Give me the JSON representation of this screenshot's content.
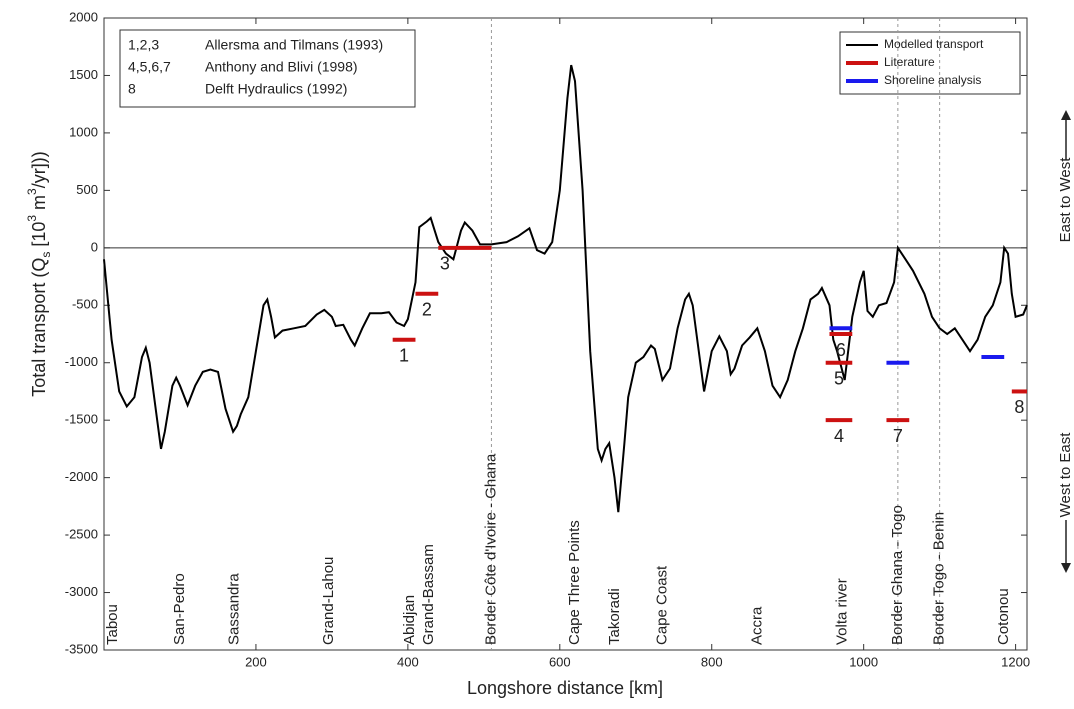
{
  "chart_data": {
    "type": "line",
    "xlabel": "Longshore distance [km]",
    "ylabel": [
      "Total transport (Q",
      "s",
      " [10",
      "3",
      " m",
      "3",
      "/yr]))"
    ],
    "xlim": [
      0,
      1215
    ],
    "ylim": [
      -3500,
      2000
    ],
    "xticks": [
      200,
      400,
      600,
      800,
      1000,
      1200
    ],
    "yticks": [
      2000,
      1500,
      1000,
      500,
      0,
      -500,
      -1000,
      -1500,
      -2000,
      -2500,
      -3000,
      -3500
    ],
    "zero_line": true,
    "series": [
      {
        "name": "Modelled transport",
        "color": "#000000",
        "x": [
          0,
          10,
          20,
          30,
          40,
          50,
          55,
          60,
          70,
          75,
          80,
          90,
          95,
          100,
          110,
          120,
          130,
          140,
          150,
          160,
          170,
          175,
          180,
          190,
          200,
          210,
          215,
          220,
          225,
          235,
          250,
          265,
          280,
          290,
          300,
          305,
          315,
          325,
          330,
          340,
          350,
          365,
          375,
          385,
          395,
          400,
          410,
          415,
          425,
          430,
          440,
          450,
          460,
          470,
          475,
          485,
          495,
          510,
          530,
          545,
          560,
          570,
          580,
          590,
          600,
          610,
          615,
          620,
          630,
          640,
          650,
          655,
          660,
          665,
          672,
          677,
          685,
          690,
          700,
          710,
          720,
          725,
          735,
          745,
          755,
          765,
          770,
          775,
          790,
          800,
          810,
          820,
          825,
          830,
          840,
          850,
          860,
          870,
          880,
          890,
          900,
          910,
          920,
          930,
          940,
          945,
          955,
          960,
          965,
          975,
          985,
          995,
          1000,
          1005,
          1012,
          1020,
          1030,
          1040,
          1045,
          1055,
          1065,
          1080,
          1090,
          1100,
          1110,
          1120,
          1130,
          1140,
          1150,
          1160,
          1170,
          1180,
          1185,
          1190,
          1195,
          1200,
          1210,
          1215
        ],
        "values": [
          -100,
          -800,
          -1250,
          -1380,
          -1300,
          -950,
          -870,
          -1000,
          -1500,
          -1750,
          -1600,
          -1200,
          -1130,
          -1200,
          -1370,
          -1200,
          -1080,
          -1060,
          -1080,
          -1400,
          -1600,
          -1550,
          -1450,
          -1300,
          -900,
          -500,
          -450,
          -600,
          -780,
          -720,
          -700,
          -680,
          -580,
          -540,
          -600,
          -680,
          -670,
          -800,
          -850,
          -700,
          -570,
          -570,
          -560,
          -650,
          -680,
          -620,
          -300,
          180,
          230,
          260,
          50,
          -50,
          -100,
          150,
          220,
          150,
          30,
          30,
          50,
          100,
          170,
          -20,
          -50,
          50,
          500,
          1300,
          1590,
          1450,
          500,
          -900,
          -1750,
          -1850,
          -1750,
          -1700,
          -2000,
          -2300,
          -1700,
          -1300,
          -1000,
          -950,
          -850,
          -880,
          -1150,
          -1050,
          -700,
          -450,
          -400,
          -500,
          -1250,
          -900,
          -770,
          -900,
          -1100,
          -1050,
          -850,
          -780,
          -700,
          -900,
          -1200,
          -1300,
          -1150,
          -900,
          -700,
          -450,
          -400,
          -350,
          -500,
          -800,
          -900,
          -1150,
          -600,
          -300,
          -200,
          -550,
          -600,
          -500,
          -480,
          -300,
          0,
          -100,
          -200,
          -400,
          -600,
          -700,
          -750,
          -700,
          -800,
          -900,
          -800,
          -600,
          -500,
          -300,
          0,
          -50,
          -400,
          -600,
          -580,
          -500
        ]
      }
    ],
    "segments": [
      {
        "name": "Literature",
        "color": "#cc1111",
        "items": [
          {
            "label": "1",
            "x": [
              380,
              410
            ],
            "value": -800
          },
          {
            "label": "2",
            "x": [
              410,
              440
            ],
            "value": -400
          },
          {
            "label": "3",
            "x": [
              440,
              510
            ],
            "value": 0
          },
          {
            "label": "4",
            "x": [
              950,
              985
            ],
            "value": -1500
          },
          {
            "label": "5",
            "x": [
              950,
              985
            ],
            "value": -1000
          },
          {
            "label": "6",
            "x": [
              955,
              985
            ],
            "value": -750
          },
          {
            "label": "7",
            "x": [
              1030,
              1060
            ],
            "value": -1500
          },
          {
            "label": "8",
            "x": [
              1195,
              1215
            ],
            "value": -1250
          }
        ]
      },
      {
        "name": "Shoreline analysis",
        "color": "#1a1aee",
        "items": [
          {
            "x": [
              955,
              985
            ],
            "value": -700
          },
          {
            "x": [
              1030,
              1060
            ],
            "value": -1000
          },
          {
            "x": [
              1155,
              1185
            ],
            "value": -950
          }
        ]
      }
    ],
    "borders": [
      510,
      1045,
      1100
    ],
    "places": [
      {
        "name": "Tabou",
        "x": 12
      },
      {
        "name": "San-Pedro",
        "x": 100
      },
      {
        "name": "Sassandra",
        "x": 172
      },
      {
        "name": "Grand-Lahou",
        "x": 296
      },
      {
        "name": "Abidjan",
        "x": 403
      },
      {
        "name": "Grand-Bassam",
        "x": 428
      },
      {
        "name": "Border Côte d'Ivoire - Ghana",
        "x": 510
      },
      {
        "name": "Cape Three Points",
        "x": 620
      },
      {
        "name": "Takoradi",
        "x": 673
      },
      {
        "name": "Cape Coast",
        "x": 735
      },
      {
        "name": "Accra",
        "x": 860
      },
      {
        "name": "Volta river",
        "x": 972
      },
      {
        "name": "Border Ghana - Togo",
        "x": 1045
      },
      {
        "name": "Border Togo - Benin",
        "x": 1100
      },
      {
        "name": "Cotonou",
        "x": 1185
      }
    ],
    "references": [
      [
        "1,2,3",
        "Allersma and Tilmans (1993)"
      ],
      [
        "4,5,6,7",
        "Anthony and Blivi (1998)"
      ],
      [
        "8",
        "Delft Hydraulics (1992)"
      ]
    ],
    "directions": [
      "East to West",
      "West to East"
    ]
  }
}
